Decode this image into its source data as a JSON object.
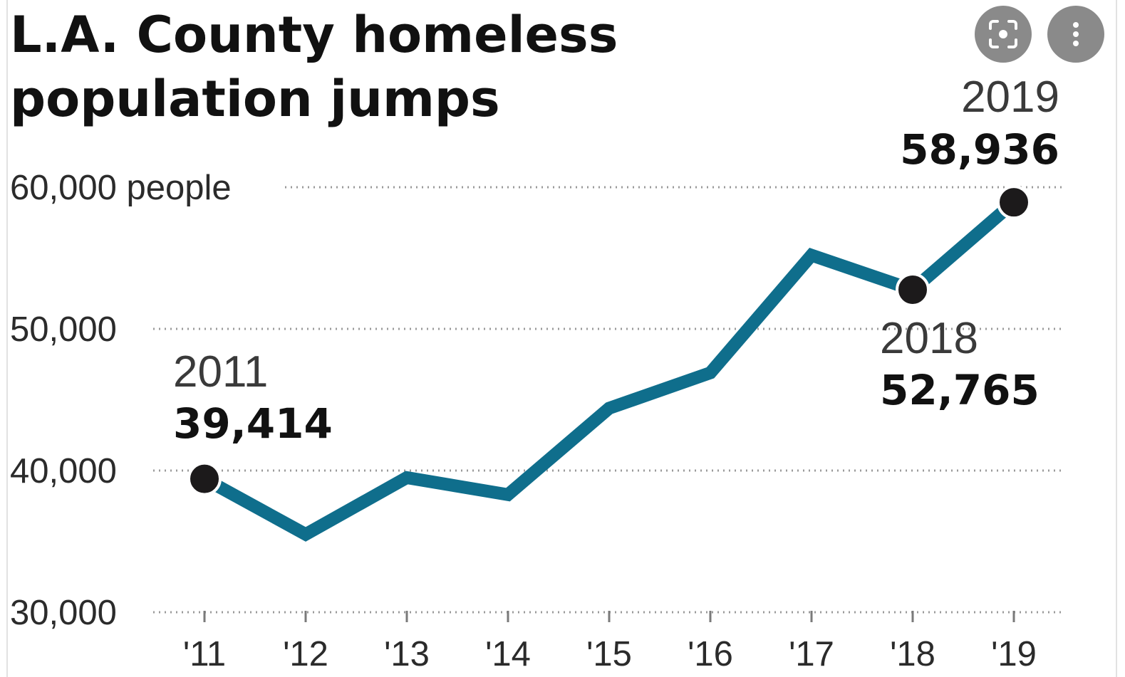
{
  "title": "L.A. County homeless population jumps",
  "toolbar": {
    "lens_icon": "lens-scan-icon",
    "more_icon": "more-vertical-icon"
  },
  "chart_data": {
    "type": "line",
    "title": "L.A. County homeless population jumps",
    "x": [
      "'11",
      "'12",
      "'13",
      "'14",
      "'15",
      "'16",
      "'17",
      "'18",
      "'19"
    ],
    "y_ticks": [
      {
        "value": 60000,
        "label": "60,000 people"
      },
      {
        "value": 50000,
        "label": "50,000"
      },
      {
        "value": 40000,
        "label": "40,000"
      },
      {
        "value": 30000,
        "label": "30,000"
      }
    ],
    "ylim": [
      30000,
      60000
    ],
    "grid": true,
    "series": [
      {
        "color": "#0f6e8c",
        "values": [
          39414,
          35500,
          39500,
          38300,
          44400,
          46900,
          55200,
          52765,
          58936
        ]
      }
    ],
    "annotations": [
      {
        "index": 0,
        "year": "2011",
        "value": "39,414"
      },
      {
        "index": 7,
        "year": "2018",
        "value": "52,765"
      },
      {
        "index": 8,
        "year": "2019",
        "value": "58,936"
      }
    ],
    "colors": {
      "line": "#0f6e8c",
      "marker": "#1c1a1b",
      "grid": "#9a9a9a"
    }
  }
}
